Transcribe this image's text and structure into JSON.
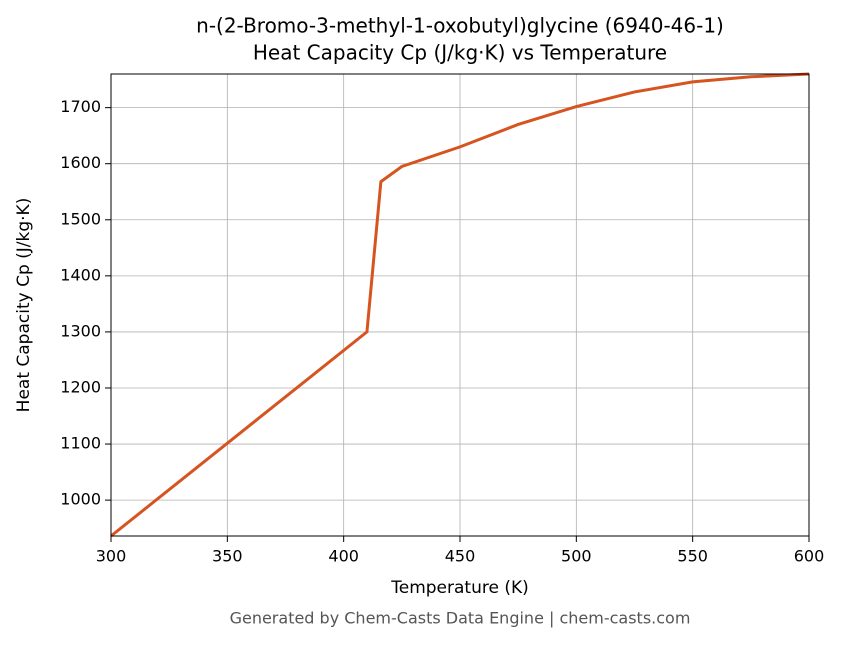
{
  "chart_data": {
    "type": "line",
    "title": "n-(2-Bromo-3-methyl-1-oxobutyl)glycine (6940-46-1)",
    "subtitle": "Heat Capacity Cp (J/kg·K) vs Temperature",
    "x_label": "Temperature (K)",
    "y_label": "Heat Capacity Cp (J/kg·K)",
    "footer": "Generated by Chem-Casts Data Engine | chem-casts.com",
    "x": [
      300,
      410,
      416,
      425,
      450,
      475,
      500,
      525,
      550,
      575,
      600
    ],
    "series": [
      {
        "name": "Cp",
        "color": "#d6541f",
        "values": [
          936,
          1300,
          1568,
          1595,
          1630,
          1670,
          1702,
          1728,
          1746,
          1755,
          1760
        ]
      }
    ],
    "xlim": [
      300,
      600
    ],
    "xticks": [
      300,
      350,
      400,
      450,
      500,
      550,
      600
    ],
    "ylim": [
      936,
      1760
    ],
    "yticks": [
      1000,
      1100,
      1200,
      1300,
      1400,
      1500,
      1600,
      1700
    ],
    "grid": true
  }
}
